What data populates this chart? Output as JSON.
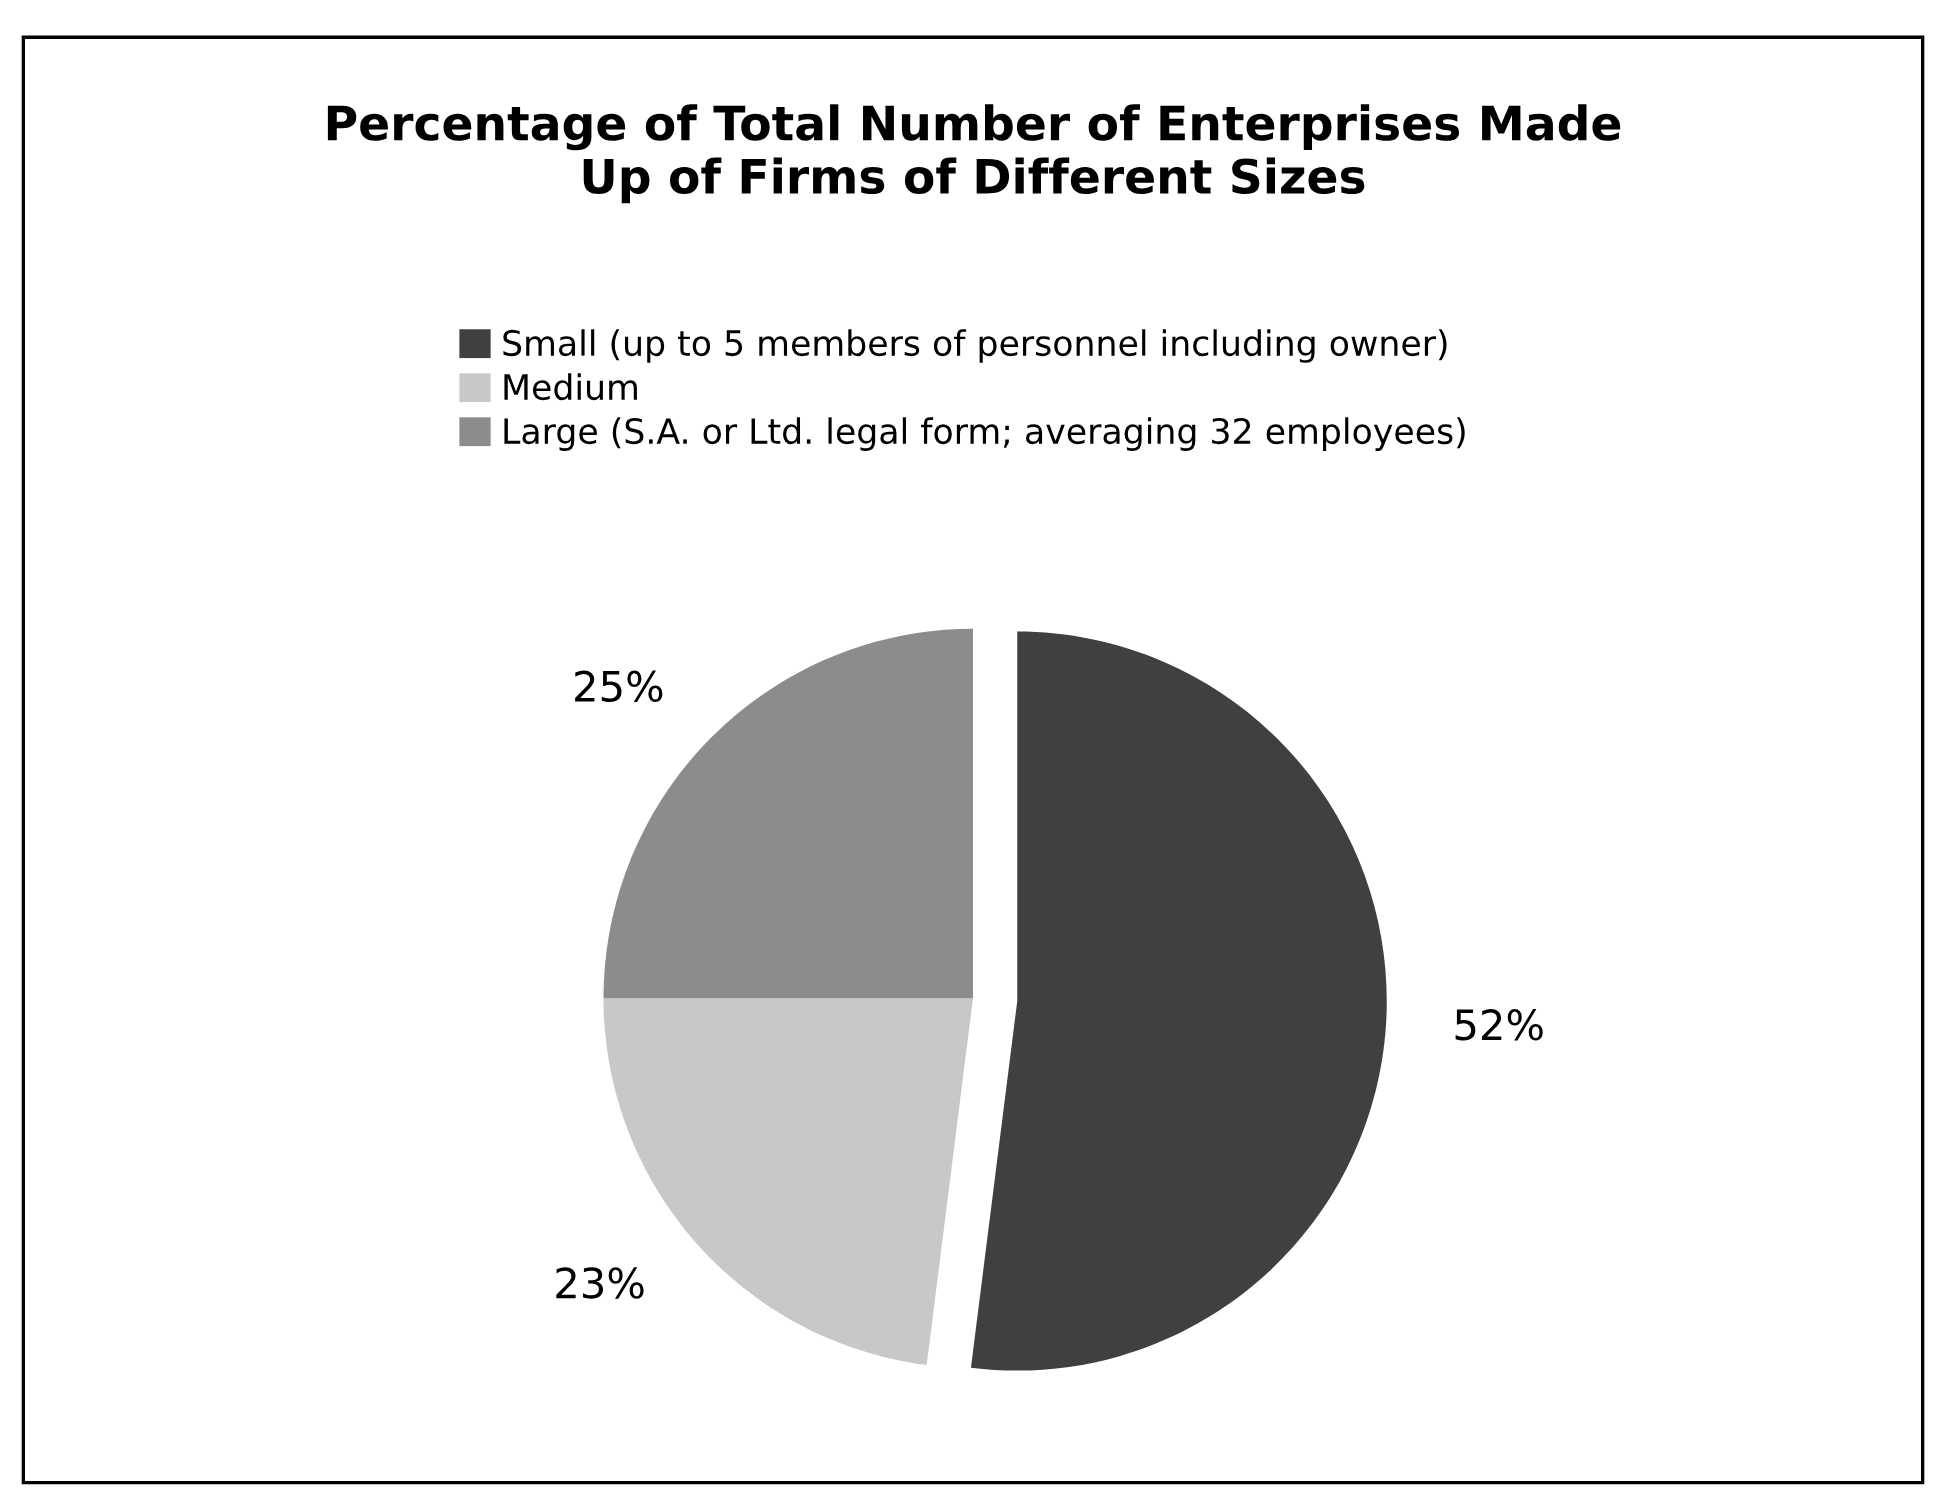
{
  "chart_data": {
    "type": "pie",
    "title": "Percentage of Total Number of Enterprises Made\nUp of Firms of Different Sizes",
    "categories": [
      "Small (up to 5 members of personnel including owner)",
      "Medium",
      "Large (S.A. or Ltd. legal form; averaging 32 employees)"
    ],
    "values": [
      52,
      23,
      25
    ],
    "value_labels": [
      "52%",
      "23%",
      "25%"
    ],
    "colors": [
      "#404040",
      "#c8c8c8",
      "#8c8c8c"
    ],
    "legend": "top"
  }
}
